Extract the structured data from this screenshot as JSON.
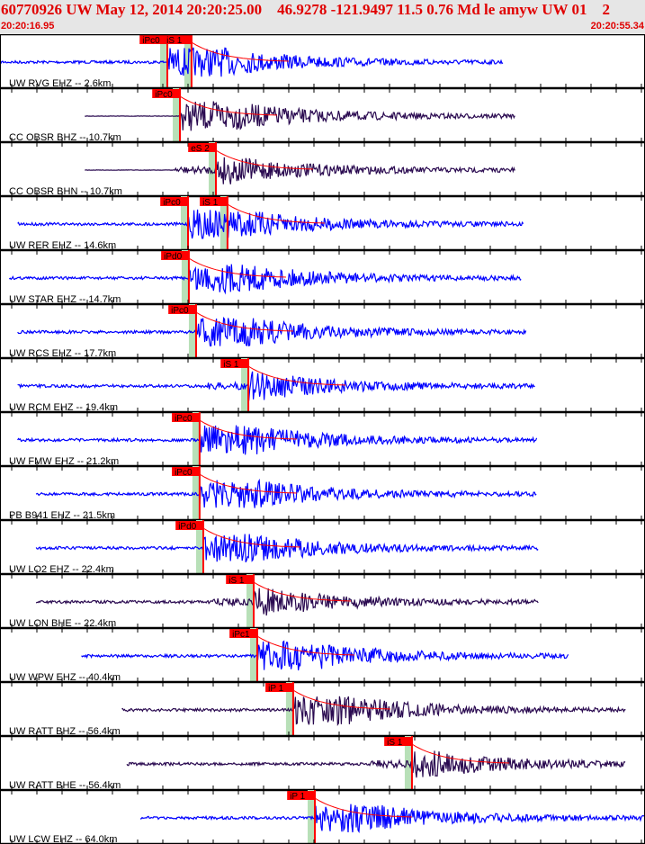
{
  "header": {
    "title": "60770926 UW May 12, 2014 20:20:25.00    46.9278 -121.9497 11.5 0.76 Md le amyw UW 01    2",
    "time_start": "20:20:16.95",
    "time_end": "20:20:55.34"
  },
  "colors": {
    "header_text": "#e00000",
    "header_bg": "#e6e6e6",
    "pick": "#ff0000",
    "predicted_band": "#b8e0b8",
    "trace_blue": "#0000ff",
    "trace_purple": "#2a0a50"
  },
  "traces": [
    {
      "label": "UW RVG EHZ -- 2.6km",
      "color": "blue",
      "start": "20:20:16.95",
      "end": "20:20:46.9",
      "picks": [
        {
          "label": "iPc0",
          "time": "20:20:26.91"
        },
        {
          "label": "iS 1",
          "time": "20:20:28.35"
        }
      ]
    },
    {
      "label": "CC OBSR BHZ -- 10.7km",
      "color": "purple",
      "start": "20:20:22.0",
      "end": "20:20:47.6",
      "picks": [
        {
          "label": "iPc0",
          "time": "20:20:27.66"
        }
      ]
    },
    {
      "label": "CC OBSR BHN -- 10.7km",
      "color": "purple",
      "start": "20:20:22.0",
      "end": "20:20:47.6",
      "picks": [
        {
          "label": "eS 2",
          "time": "20:20:29.80"
        }
      ]
    },
    {
      "label": "UW RER EHZ -- 14.6km",
      "color": "blue",
      "start": "20:20:18.0",
      "end": "20:20:48.1",
      "picks": [
        {
          "label": "iPc0",
          "time": "20:20:28.14"
        },
        {
          "label": "iS 1",
          "time": "20:20:30.49"
        }
      ]
    },
    {
      "label": "UW STAR EHZ -- 14.7km",
      "color": "blue",
      "start": "20:20:17.5",
      "end": "20:20:48.0",
      "picks": [
        {
          "label": "iPd0",
          "time": "20:20:28.19"
        }
      ]
    },
    {
      "label": "UW RCS EHZ -- 17.7km",
      "color": "blue",
      "start": "20:20:18.0",
      "end": "20:20:48.3",
      "picks": [
        {
          "label": "iPc0",
          "time": "20:20:28.62"
        }
      ]
    },
    {
      "label": "UW RCM EHZ -- 19.4km",
      "color": "blue",
      "start": "20:20:18.0",
      "end": "20:20:48.8",
      "picks": [
        {
          "label": "iS 1",
          "time": "20:20:31.73"
        }
      ]
    },
    {
      "label": "UW FMW EHZ -- 21.2km",
      "color": "blue",
      "start": "20:20:18.0",
      "end": "20:20:48.9",
      "picks": [
        {
          "label": "iPc0",
          "time": "20:20:28.83"
        }
      ]
    },
    {
      "label": "PB B941 EHZ -- 21.5km",
      "color": "blue",
      "start": "20:20:19.1",
      "end": "20:20:48.9",
      "picks": [
        {
          "label": "iPc0",
          "time": "20:20:28.83"
        }
      ]
    },
    {
      "label": "UW LO2 EHZ -- 22.4km",
      "color": "blue",
      "start": "20:20:19.1",
      "end": "20:20:49.0",
      "picks": [
        {
          "label": "iPd0",
          "time": "20:20:29.05"
        }
      ]
    },
    {
      "label": "UW LON BHE -- 22.4km",
      "color": "purple",
      "start": "20:20:19.1",
      "end": "20:20:49.0",
      "picks": [
        {
          "label": "iS 1",
          "time": "20:20:32.05"
        }
      ]
    },
    {
      "label": "UW WPW EHZ -- 40.4km",
      "color": "blue",
      "start": "20:20:21.8",
      "end": "20:20:50.8",
      "picks": [
        {
          "label": "iPc1",
          "time": "20:20:32.26"
        }
      ]
    },
    {
      "label": "UW RATT BHZ -- 56.4km",
      "color": "purple",
      "start": "20:20:24.2",
      "end": "20:20:54.2",
      "picks": [
        {
          "label": "iP 1",
          "time": "20:20:34.40"
        }
      ]
    },
    {
      "label": "UW RATT BHE -- 56.4km",
      "color": "purple",
      "start": "20:20:24.5",
      "end": "20:20:54.2",
      "picks": [
        {
          "label": "iS 1",
          "time": "20:20:41.47"
        }
      ]
    },
    {
      "label": "UW LCW EHZ -- 64.0km",
      "color": "blue",
      "start": "20:20:25.3",
      "end": "20:20:55.34",
      "picks": [
        {
          "label": "iP 1",
          "time": "20:20:35.69"
        }
      ]
    }
  ]
}
